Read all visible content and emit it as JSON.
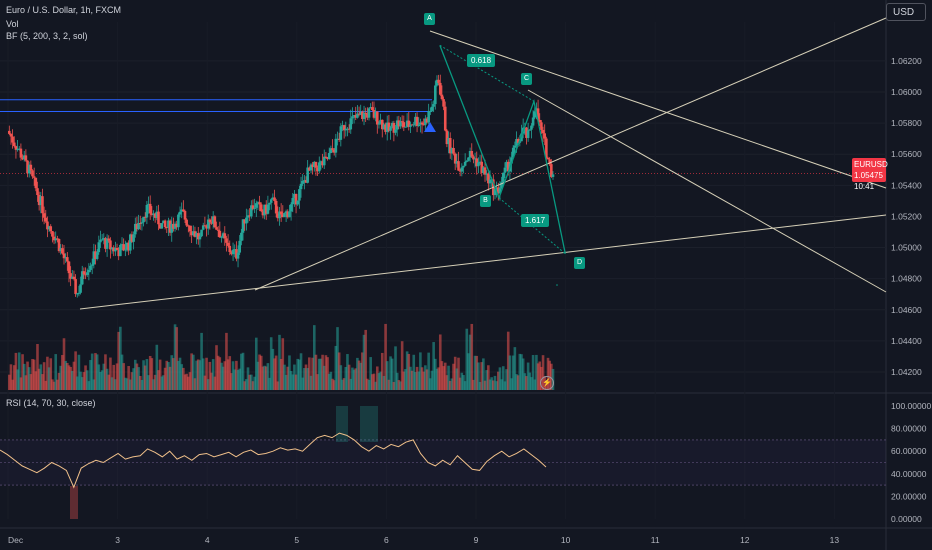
{
  "header": {
    "symbol_title": "Euro / U.S. Dollar, 1h, FXCM",
    "volume_label": "Vol",
    "indicator_label": "BF (5, 200, 3, 2, sol)",
    "currency": "USD"
  },
  "last_price": {
    "symbol": "EURUSD",
    "price": "1.05475",
    "countdown": "10:41"
  },
  "rsi": {
    "label": "RSI (14, 70, 30, close)"
  },
  "pattern": {
    "points": [
      "A",
      "B",
      "C",
      "D"
    ],
    "ratios": [
      "0.618",
      "1.617"
    ]
  },
  "colors": {
    "up": "#26a69a",
    "down": "#ef5350",
    "background": "#131722",
    "pattern": "#089981",
    "rsi_line": "#f0c08a",
    "trendline": "#d6d0b8"
  },
  "chart_data": {
    "type": "candlestick",
    "price_axis": {
      "ticks": [
        "1.06200",
        "1.06000",
        "1.05800",
        "1.05600",
        "1.05400",
        "1.05200",
        "1.05000",
        "1.04800",
        "1.04600",
        "1.04400",
        "1.04200"
      ],
      "range": [
        1.0411,
        1.0645
      ]
    },
    "rsi_axis": {
      "ticks": [
        "100.00000",
        "80.00000",
        "60.00000",
        "40.00000",
        "20.00000",
        "0.00000"
      ],
      "range": [
        0,
        100
      ],
      "bands": [
        30,
        50,
        70
      ]
    },
    "time_axis": {
      "ticks": [
        "Dec",
        "3",
        "4",
        "5",
        "6",
        "9",
        "10",
        "11",
        "12",
        "13"
      ],
      "tick_positions": [
        0,
        1,
        2,
        3,
        4,
        5,
        6,
        7,
        8,
        9
      ]
    },
    "price_path": [
      [
        0.0,
        1.0575
      ],
      [
        0.05,
        1.057
      ],
      [
        0.15,
        1.056
      ],
      [
        0.25,
        1.0548
      ],
      [
        0.35,
        1.0532
      ],
      [
        0.45,
        1.0515
      ],
      [
        0.55,
        1.0505
      ],
      [
        0.65,
        1.049
      ],
      [
        0.72,
        1.0478
      ],
      [
        0.78,
        1.047
      ],
      [
        0.85,
        1.0485
      ],
      [
        0.95,
        1.0492
      ],
      [
        1.05,
        1.0505
      ],
      [
        1.15,
        1.05
      ],
      [
        1.25,
        1.0498
      ],
      [
        1.35,
        1.0502
      ],
      [
        1.45,
        1.0515
      ],
      [
        1.55,
        1.0525
      ],
      [
        1.65,
        1.052
      ],
      [
        1.75,
        1.0512
      ],
      [
        1.85,
        1.0515
      ],
      [
        1.95,
        1.0522
      ],
      [
        2.05,
        1.0512
      ],
      [
        2.15,
        1.0505
      ],
      [
        2.25,
        1.052
      ],
      [
        2.35,
        1.0512
      ],
      [
        2.45,
        1.05
      ],
      [
        2.55,
        1.0495
      ],
      [
        2.65,
        1.052
      ],
      [
        2.75,
        1.0528
      ],
      [
        2.85,
        1.0522
      ],
      [
        2.95,
        1.053
      ],
      [
        3.05,
        1.0518
      ],
      [
        3.15,
        1.0525
      ],
      [
        3.25,
        1.0535
      ],
      [
        3.35,
        1.0548
      ],
      [
        3.45,
        1.0552
      ],
      [
        3.55,
        1.0555
      ],
      [
        3.65,
        1.0565
      ],
      [
        3.75,
        1.0578
      ],
      [
        3.85,
        1.0582
      ],
      [
        3.95,
        1.0585
      ],
      [
        4.05,
        1.0587
      ],
      [
        4.15,
        1.0582
      ],
      [
        4.25,
        1.0575
      ],
      [
        4.35,
        1.058
      ],
      [
        4.45,
        1.0578
      ],
      [
        4.55,
        1.0582
      ],
      [
        4.65,
        1.058
      ],
      [
        4.75,
        1.0592
      ],
      [
        4.8,
        1.061
      ],
      [
        4.85,
        1.0595
      ],
      [
        4.9,
        1.057
      ],
      [
        4.95,
        1.0562
      ],
      [
        5.05,
        1.0552
      ],
      [
        5.15,
        1.056
      ],
      [
        5.25,
        1.0555
      ],
      [
        5.35,
        1.0545
      ],
      [
        5.45,
        1.0535
      ],
      [
        5.5,
        1.054
      ],
      [
        5.55,
        1.0548
      ],
      [
        5.65,
        1.0562
      ],
      [
        5.75,
        1.0575
      ],
      [
        5.82,
        1.057
      ],
      [
        5.88,
        1.0592
      ],
      [
        5.93,
        1.058
      ],
      [
        6.0,
        1.0565
      ],
      [
        6.05,
        1.0552
      ],
      [
        6.08,
        1.0548
      ]
    ],
    "pattern_points": [
      {
        "name": "A",
        "x": 4.82,
        "price": 1.063
      },
      {
        "name": "B",
        "x": 5.48,
        "price": 1.0532
      },
      {
        "name": "C",
        "x": 5.87,
        "price": 1.0594
      },
      {
        "name": "D",
        "x": 6.22,
        "price": 1.0496
      }
    ],
    "horizontal_levels": [
      1.0595,
      1.05875
    ],
    "rsi_values": [
      61,
      57,
      52,
      47,
      44,
      41,
      45,
      50,
      47,
      43,
      28,
      45,
      49,
      52,
      50,
      54,
      58,
      53,
      55,
      56,
      62,
      59,
      55,
      60,
      53,
      56,
      52,
      57,
      58,
      55,
      57,
      59,
      55,
      59,
      61,
      57,
      58,
      60,
      63,
      61,
      62,
      60,
      66,
      72,
      74,
      72,
      76,
      74,
      70,
      64,
      60,
      65,
      62,
      66,
      64,
      68,
      70,
      58,
      50,
      47,
      52,
      48,
      56,
      50,
      44,
      43,
      51,
      56,
      60,
      55,
      58,
      62,
      57,
      52,
      46
    ]
  }
}
